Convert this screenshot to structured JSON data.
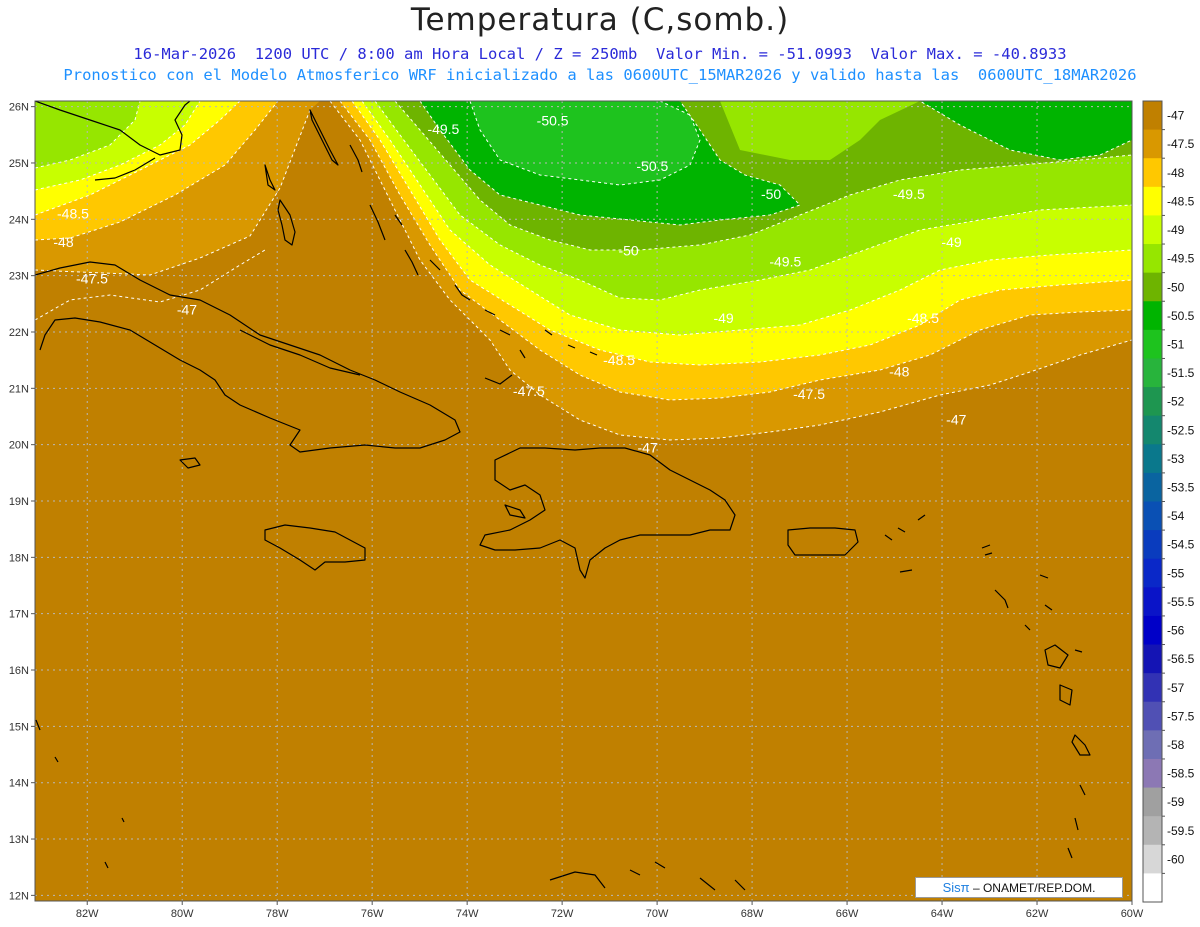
{
  "title": "Temperatura (C,somb.)",
  "subtitle_line1": "16-Mar-2026  1200 UTC / 8:00 am Hora Local / Z = 250mb  Valor Min. = -51.0993  Valor Max. = -40.8933",
  "subtitle_line2": "Pronostico con el Modelo Atmosferico WRF inicializado a las 0600UTC_15MAR2026 y valido hasta las  0600UTC_18MAR2026",
  "credit": {
    "brand": "Sisπ",
    "text": " – ONAMET/REP.DOM."
  },
  "map": {
    "lon_range": [
      -83.1,
      -60
    ],
    "lat_range": [
      11.9,
      26.1
    ],
    "lon_ticks": [
      "82W",
      "80W",
      "78W",
      "76W",
      "74W",
      "72W",
      "70W",
      "68W",
      "66W",
      "64W",
      "62W",
      "60W"
    ],
    "lat_ticks": [
      "12N",
      "13N",
      "14N",
      "15N",
      "16N",
      "17N",
      "18N",
      "19N",
      "20N",
      "21N",
      "22N",
      "23N",
      "24N",
      "25N",
      "26N"
    ],
    "grid": true
  },
  "colorbar": {
    "labels": [
      "-47",
      "-47.5",
      "-48",
      "-48.5",
      "-49",
      "-49.5",
      "-50",
      "-50.5",
      "-51",
      "-51.5",
      "-52",
      "-52.5",
      "-53",
      "-53.5",
      "-54",
      "-54.5",
      "-55",
      "-55.5",
      "-56",
      "-56.5",
      "-57",
      "-57.5",
      "-58",
      "-58.5",
      "-59",
      "-59.5",
      "-60"
    ],
    "colors": [
      "#c08000",
      "#d99800",
      "#ffc800",
      "#ffff00",
      "#c8ff00",
      "#96e600",
      "#6eb400",
      "#00b400",
      "#1ec31e",
      "#28b43c",
      "#1e9650",
      "#14876e",
      "#0a788c",
      "#0a64a0",
      "#0a50b4",
      "#0a3cbe",
      "#0a28c8",
      "#0a14c8",
      "#0000c8",
      "#1414b4",
      "#3232b4",
      "#5050b4",
      "#6e6eb4",
      "#8c78b4",
      "#a0a0a0",
      "#b4b4b4",
      "#d7d7d7",
      "#ffffff"
    ]
  },
  "contour_labels": [
    {
      "text": "-49.5",
      "lon": -74.5,
      "lat": 25.6
    },
    {
      "text": "-50.5",
      "lon": -72.2,
      "lat": 25.75
    },
    {
      "text": "-50.5",
      "lon": -70.1,
      "lat": 24.95
    },
    {
      "text": "-50",
      "lon": -67.6,
      "lat": 24.45
    },
    {
      "text": "-49.5",
      "lon": -64.7,
      "lat": 24.45
    },
    {
      "text": "-48.5",
      "lon": -82.3,
      "lat": 24.1
    },
    {
      "text": "-48",
      "lon": -82.5,
      "lat": 23.6
    },
    {
      "text": "-49",
      "lon": -63.8,
      "lat": 23.6
    },
    {
      "text": "-50",
      "lon": -70.6,
      "lat": 23.45
    },
    {
      "text": "-49.5",
      "lon": -67.3,
      "lat": 23.25
    },
    {
      "text": "-47.5",
      "lon": -81.9,
      "lat": 22.95
    },
    {
      "text": "-47",
      "lon": -79.9,
      "lat": 22.4
    },
    {
      "text": "-49",
      "lon": -68.6,
      "lat": 22.25
    },
    {
      "text": "-48.5",
      "lon": -64.4,
      "lat": 22.25
    },
    {
      "text": "-48.5",
      "lon": -70.8,
      "lat": 21.5
    },
    {
      "text": "-48",
      "lon": -64.9,
      "lat": 21.3
    },
    {
      "text": "-47.5",
      "lon": -72.7,
      "lat": 20.95
    },
    {
      "text": "-47.5",
      "lon": -66.8,
      "lat": 20.9
    },
    {
      "text": "-47",
      "lon": -63.7,
      "lat": 20.45
    },
    {
      "text": "-47",
      "lon": -70.2,
      "lat": 19.95
    }
  ]
}
